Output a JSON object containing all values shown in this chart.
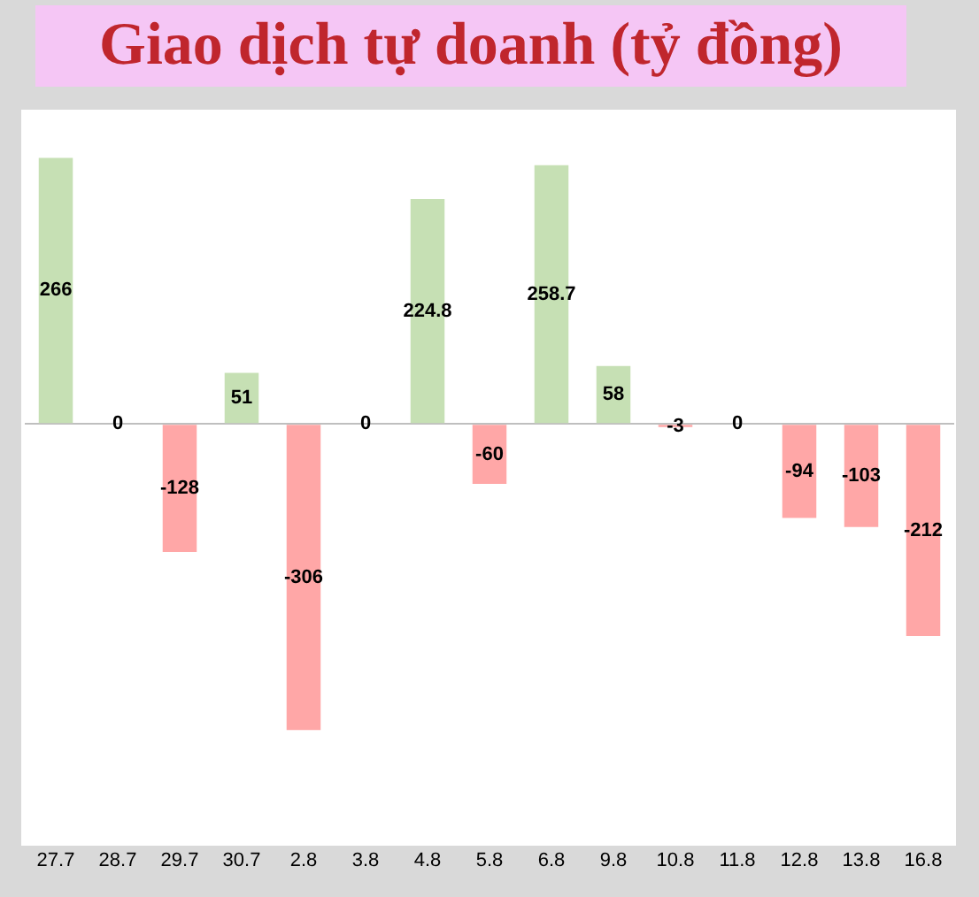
{
  "chart_data": {
    "type": "bar",
    "title": "Giao dịch tự doanh (tỷ đồng)",
    "categories": [
      "27.7",
      "28.7",
      "29.7",
      "30.7",
      "2.8",
      "3.8",
      "4.8",
      "5.8",
      "6.8",
      "9.8",
      "10.8",
      "11.8",
      "12.8",
      "13.8",
      "16.8"
    ],
    "values": [
      266,
      0,
      -128,
      51,
      -306,
      0,
      224.8,
      -60,
      258.7,
      58,
      -3,
      0,
      -94,
      -103,
      -212
    ],
    "colors": [
      "#c6e0b4",
      "#c6e0b4",
      "#ffa7a7",
      "#c6e0b4",
      "#ffa7a7",
      "#c6e0b4",
      "#c6e0b4",
      "#ffa7a7",
      "#c6e0b4",
      "#c6e0b4",
      "#ffa7a7",
      "#c6e0b4",
      "#ffa7a7",
      "#ffa7a7",
      "#ffa7a7"
    ],
    "data_labels": true,
    "grid": false,
    "legend": false
  }
}
